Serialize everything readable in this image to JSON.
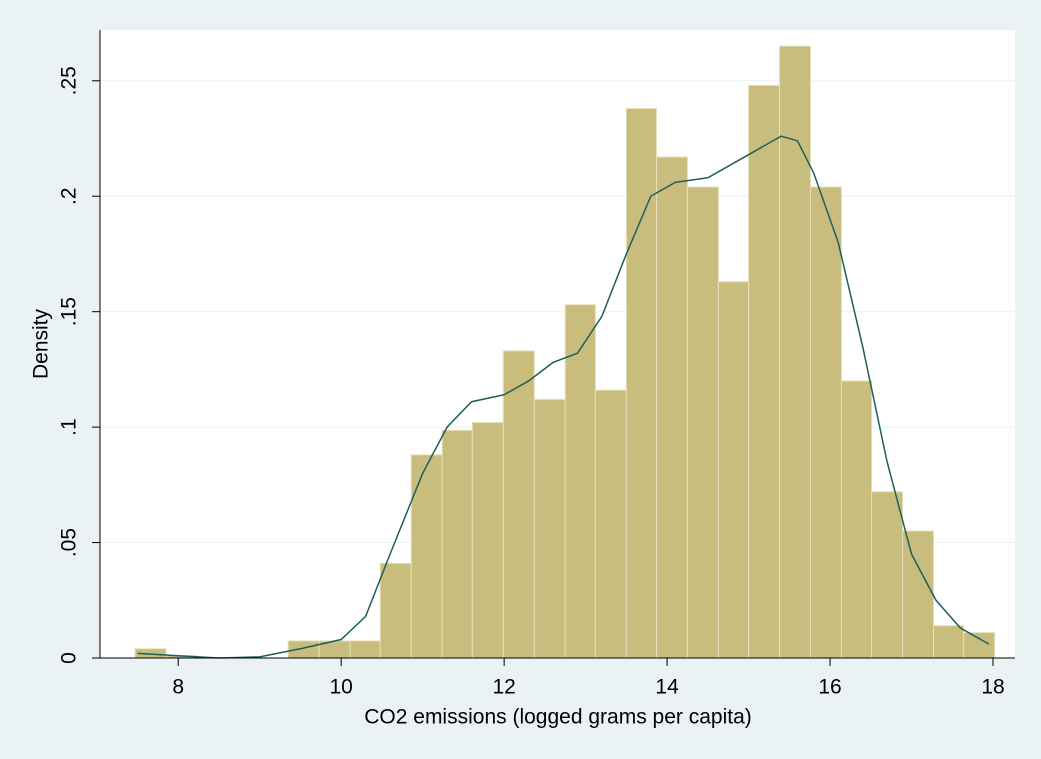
{
  "chart_data": {
    "type": "histogram",
    "xlabel": "CO2 emissions (logged grams per capita)",
    "ylabel": "Density",
    "bins": [
      7.47,
      7.85,
      8.22,
      8.6,
      8.98,
      9.35,
      9.73,
      10.11,
      10.48,
      10.86,
      11.24,
      11.61,
      11.99,
      12.37,
      12.75,
      13.12,
      13.5,
      13.87,
      14.25,
      14.63,
      15.0,
      15.38,
      15.76,
      16.14,
      16.51,
      16.89,
      17.27,
      17.64,
      18.02
    ],
    "values": [
      0.004,
      0.001,
      0,
      0,
      0,
      0.0074,
      0.0074,
      0.0074,
      0.041,
      0.088,
      0.0986,
      0.102,
      0.133,
      0.112,
      0.153,
      0.116,
      0.238,
      0.217,
      0.204,
      0.163,
      0.248,
      0.265,
      0.204,
      0.12,
      0.072,
      0.055,
      0.014,
      0.011
    ],
    "color": "#c9bd7e",
    "density": {
      "color": "#1f5f5b",
      "x": [
        7.5,
        8,
        8.5,
        9,
        9.5,
        10,
        10.3,
        10.6,
        11,
        11.3,
        11.6,
        12,
        12.3,
        12.6,
        12.9,
        13.2,
        13.5,
        13.8,
        14.1,
        14.5,
        14.8,
        15.1,
        15.4,
        15.6,
        15.8,
        16.1,
        16.4,
        16.7,
        17,
        17.3,
        17.6,
        17.95
      ],
      "values": [
        0.002,
        0.001,
        0,
        0.0005,
        0.004,
        0.008,
        0.018,
        0.045,
        0.08,
        0.1,
        0.111,
        0.114,
        0.12,
        0.128,
        0.132,
        0.148,
        0.175,
        0.2,
        0.206,
        0.208,
        0.214,
        0.22,
        0.226,
        0.224,
        0.21,
        0.18,
        0.135,
        0.085,
        0.045,
        0.025,
        0.013,
        0.006
      ]
    },
    "xlim": [
      7.04,
      18.27
    ],
    "ylim": [
      0,
      0.272
    ],
    "xticks": [
      8,
      10,
      12,
      14,
      16,
      18
    ],
    "yticks": [
      0,
      {
        "value": 0.05,
        "label": ".05"
      },
      {
        "value": 0.1,
        "label": ".1"
      },
      {
        "value": 0.15,
        "label": ".15"
      },
      {
        "value": 0.2,
        "label": ".2"
      },
      {
        "value": 0.25,
        "label": ".25"
      }
    ],
    "grid": true
  }
}
